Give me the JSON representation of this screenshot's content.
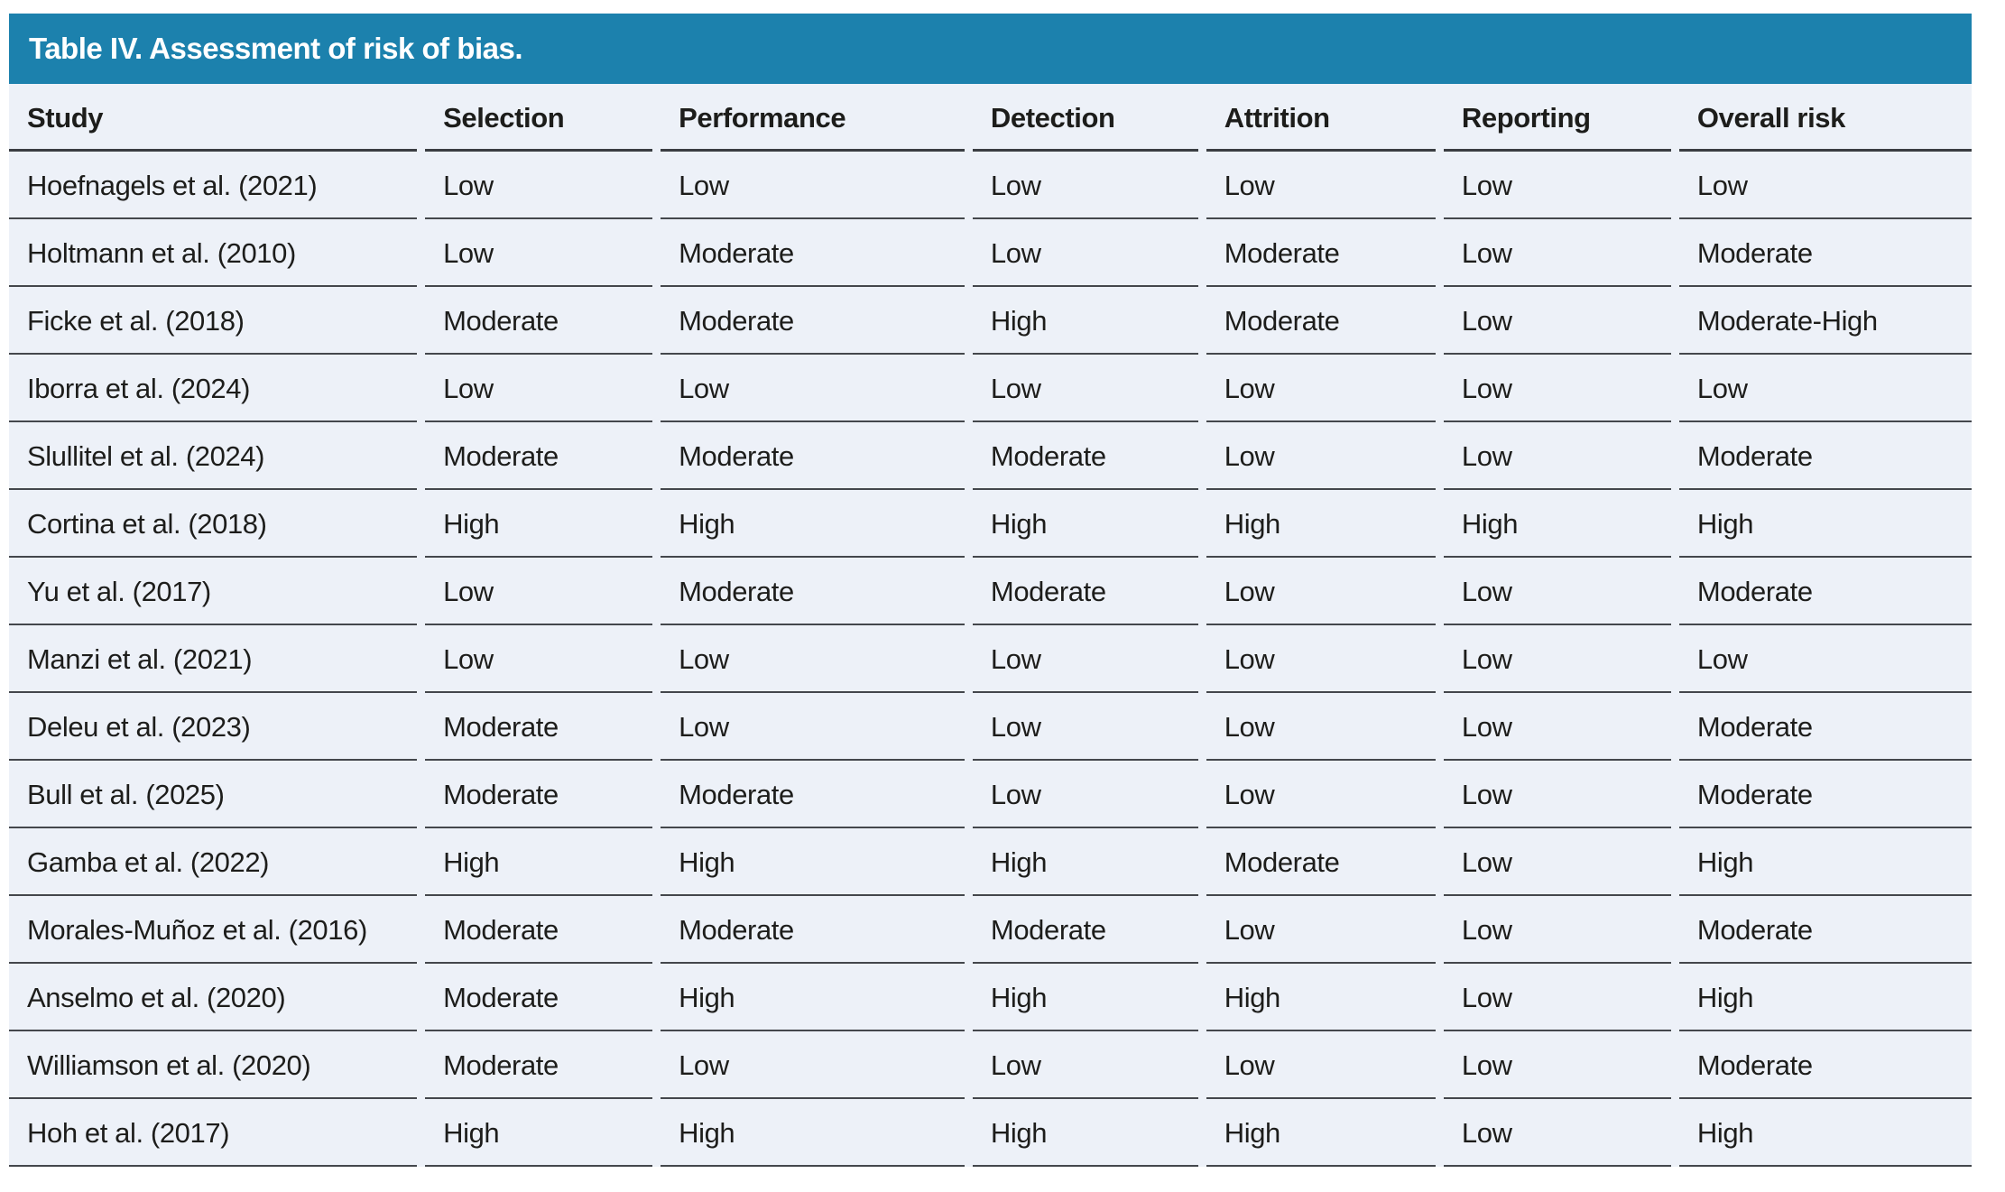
{
  "title": "Table IV. Assessment of risk of bias.",
  "colors": {
    "title_bar_bg": "#1c81ad",
    "title_text": "#ffffff",
    "row_bg": "#edf1f8",
    "separator_line": "#44474c",
    "body_text": "#1d1d1b"
  },
  "table": {
    "columns": [
      "Study",
      "Selection",
      "Performance",
      "Detection",
      "Attrition",
      "Reporting",
      "Overall risk"
    ],
    "column_widths_pct": [
      21.2,
      12.0,
      15.9,
      11.9,
      12.1,
      12.0,
      14.9
    ],
    "rows": [
      [
        "Hoefnagels et al. (2021)",
        "Low",
        "Low",
        "Low",
        "Low",
        "Low",
        "Low"
      ],
      [
        "Holtmann et al. (2010)",
        "Low",
        "Moderate",
        "Low",
        "Moderate",
        "Low",
        "Moderate"
      ],
      [
        "Ficke et al. (2018)",
        "Moderate",
        "Moderate",
        "High",
        "Moderate",
        "Low",
        "Moderate-High"
      ],
      [
        "Iborra et al. (2024)",
        "Low",
        "Low",
        "Low",
        "Low",
        "Low",
        "Low"
      ],
      [
        "Slullitel et al. (2024)",
        "Moderate",
        "Moderate",
        "Moderate",
        "Low",
        "Low",
        "Moderate"
      ],
      [
        "Cortina et al. (2018)",
        "High",
        "High",
        "High",
        "High",
        "High",
        "High"
      ],
      [
        "Yu et al. (2017)",
        "Low",
        "Moderate",
        "Moderate",
        "Low",
        "Low",
        "Moderate"
      ],
      [
        "Manzi et al. (2021)",
        "Low",
        "Low",
        "Low",
        "Low",
        "Low",
        "Low"
      ],
      [
        "Deleu et al. (2023)",
        "Moderate",
        "Low",
        "Low",
        "Low",
        "Low",
        "Moderate"
      ],
      [
        "Bull et al. (2025)",
        "Moderate",
        "Moderate",
        "Low",
        "Low",
        "Low",
        "Moderate"
      ],
      [
        "Gamba et al. (2022)",
        "High",
        "High",
        "High",
        "Moderate",
        "Low",
        "High"
      ],
      [
        "Morales-Muñoz et al. (2016)",
        "Moderate",
        "Moderate",
        "Moderate",
        "Low",
        "Low",
        "Moderate"
      ],
      [
        "Anselmo et al. (2020)",
        "Moderate",
        "High",
        "High",
        "High",
        "Low",
        "High"
      ],
      [
        "Williamson et al. (2020)",
        "Moderate",
        "Low",
        "Low",
        "Low",
        "Low",
        "Moderate"
      ],
      [
        "Hoh et al. (2017)",
        "High",
        "High",
        "High",
        "High",
        "Low",
        "High"
      ]
    ]
  }
}
